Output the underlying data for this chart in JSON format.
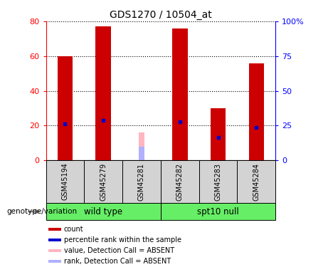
{
  "title": "GDS1270 / 10504_at",
  "samples": [
    "GSM45194",
    "GSM45279",
    "GSM45281",
    "GSM45282",
    "GSM45283",
    "GSM45284"
  ],
  "red_bars": [
    60,
    77,
    0,
    76,
    30,
    56
  ],
  "blue_markers": [
    21,
    23,
    0,
    22,
    13,
    19
  ],
  "absent_value": [
    0,
    0,
    16,
    0,
    0,
    0
  ],
  "absent_rank": [
    0,
    0,
    8,
    0,
    0,
    0
  ],
  "ylim_left": [
    0,
    80
  ],
  "ylim_right": [
    0,
    100
  ],
  "yticks_left": [
    0,
    20,
    40,
    60,
    80
  ],
  "ytick_labels_right": [
    "0",
    "25",
    "50",
    "75",
    "100%"
  ],
  "bar_color": "#cc0000",
  "blue_color": "#0000cc",
  "absent_bar_color": "#ffb6c1",
  "absent_rank_color": "#b0b0ff",
  "wt_group_idx": [
    0,
    1,
    2
  ],
  "spt_group_idx": [
    3,
    4,
    5
  ],
  "legend_items": [
    "count",
    "percentile rank within the sample",
    "value, Detection Call = ABSENT",
    "rank, Detection Call = ABSENT"
  ],
  "legend_colors": [
    "#cc0000",
    "#0000cc",
    "#ffb6c1",
    "#b0b0ff"
  ]
}
